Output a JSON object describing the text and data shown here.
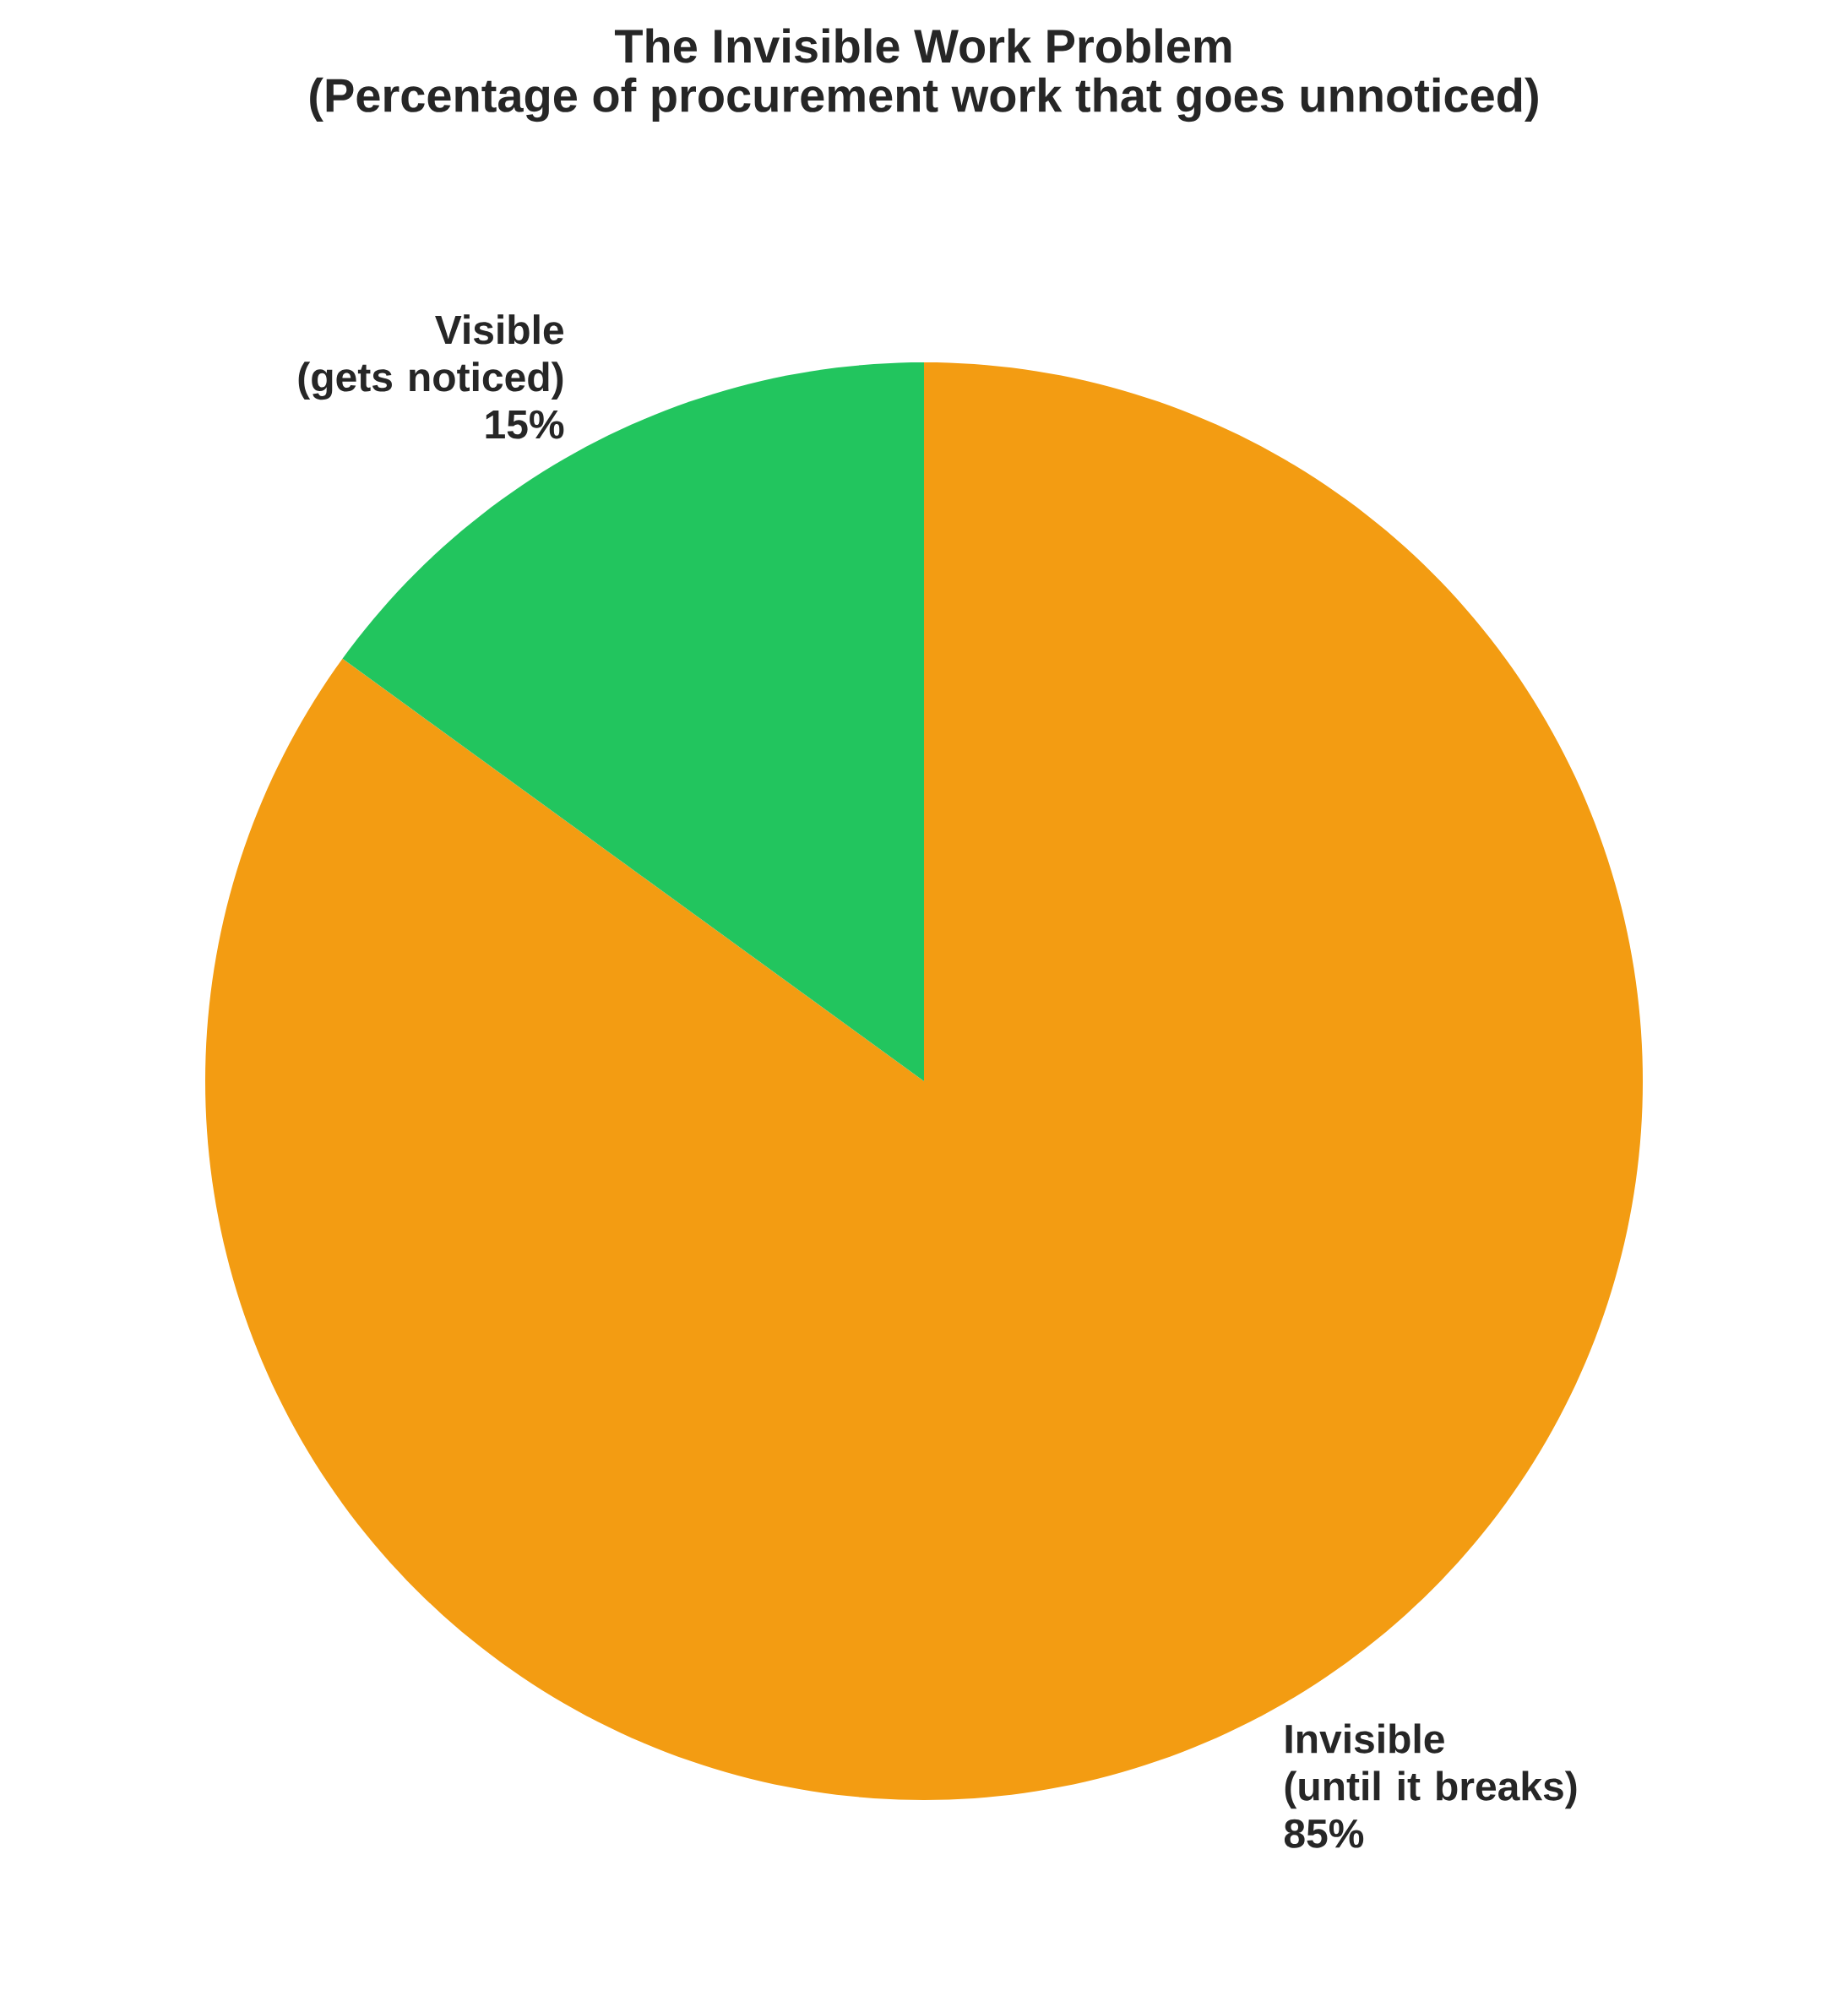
{
  "chart_data": {
    "type": "pie",
    "title": "The Invisible Work Problem",
    "subtitle": "(Percentage of procurement work that goes unnoticed)",
    "categories": [
      "Invisible\n(until it breaks)",
      "Visible\n(gets noticed)"
    ],
    "values": [
      85,
      15
    ],
    "value_labels": [
      "85%",
      "15%"
    ],
    "colors": [
      "#f39c12",
      "#22c55e"
    ]
  }
}
